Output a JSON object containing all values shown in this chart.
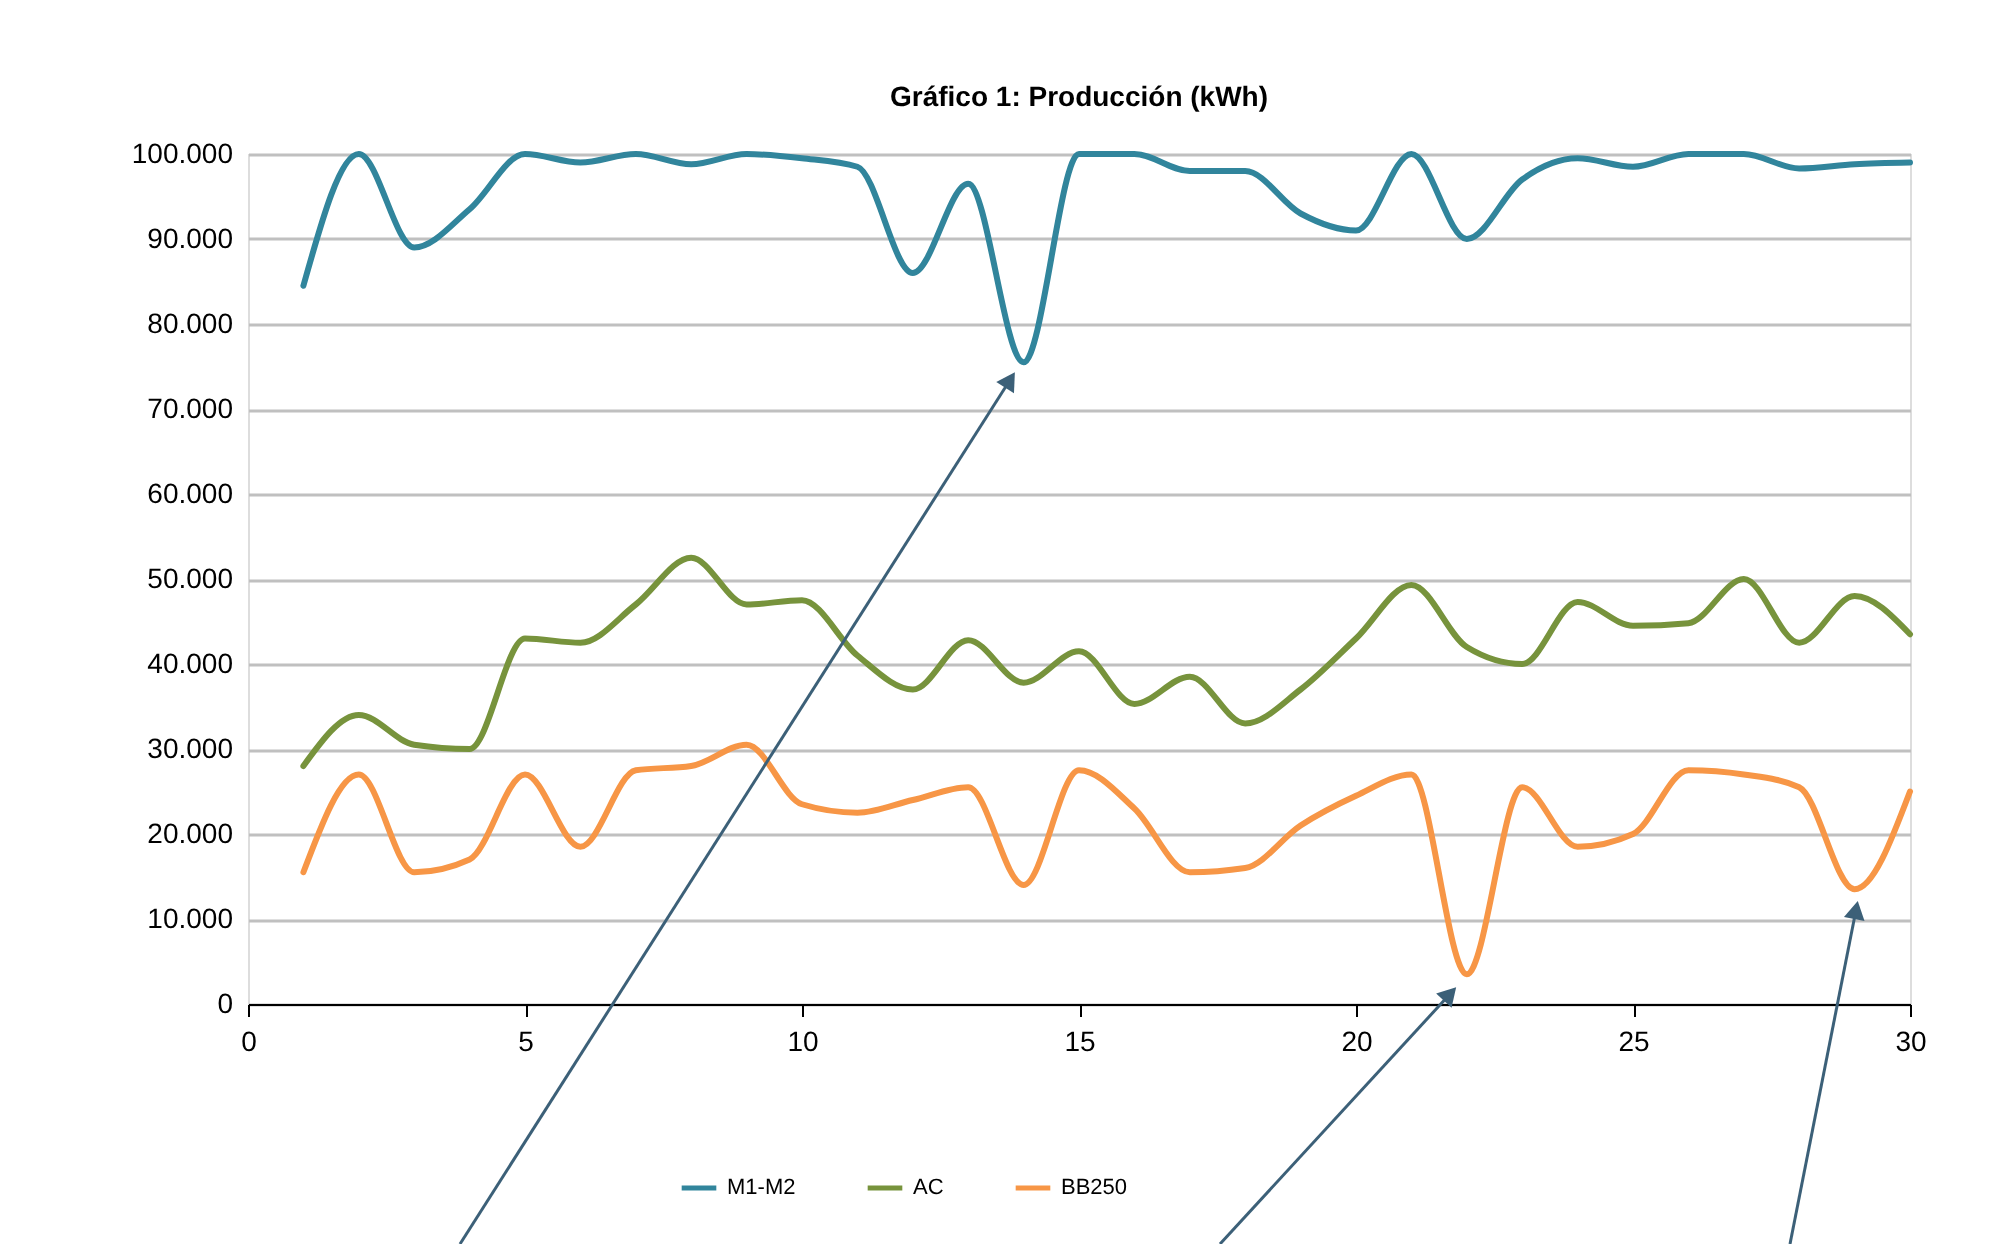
{
  "chart_data": {
    "type": "line",
    "title": "Gráfico 1:  Producción (kWh)",
    "x": [
      1,
      2,
      3,
      4,
      5,
      6,
      7,
      8,
      9,
      10,
      11,
      12,
      13,
      14,
      15,
      16,
      17,
      18,
      19,
      20,
      21,
      22,
      23,
      24,
      25,
      26,
      27,
      28,
      29,
      30
    ],
    "series": [
      {
        "name": "M1-M2",
        "color": "#31859c",
        "values": [
          84500,
          100000,
          89000,
          93500,
          100000,
          99000,
          100000,
          98800,
          100000,
          99500,
          98500,
          86000,
          96500,
          75500,
          100000,
          100000,
          98000,
          98000,
          93000,
          91000,
          100000,
          90000,
          97000,
          99500,
          98500,
          100000,
          100000,
          98300,
          98800,
          99000
        ]
      },
      {
        "name": "AC",
        "color": "#77933c",
        "values": [
          28000,
          34000,
          30500,
          30000,
          43000,
          42500,
          47000,
          52500,
          47000,
          47500,
          41000,
          37000,
          42800,
          37800,
          41500,
          35300,
          38500,
          33000,
          37000,
          43000,
          49300,
          42000,
          40000,
          47300,
          44500,
          44800,
          50000,
          42500,
          48000,
          43500
        ]
      },
      {
        "name": "BB250",
        "color": "#f79646",
        "values": [
          15500,
          27000,
          15500,
          17000,
          27000,
          18500,
          27500,
          28000,
          30500,
          23500,
          22500,
          24000,
          25500,
          14000,
          27500,
          23000,
          15500,
          16000,
          21000,
          24500,
          27000,
          3500,
          25500,
          18500,
          20000,
          27500,
          27000,
          25500,
          13500,
          25000
        ]
      }
    ],
    "xlim": [
      0,
      30
    ],
    "xticks": [
      0,
      5,
      10,
      15,
      20,
      25,
      30
    ],
    "ylim": [
      0,
      100000
    ],
    "yticks": [
      {
        "value": 0,
        "label": "0"
      },
      {
        "value": 10000,
        "label": "10.000"
      },
      {
        "value": 20000,
        "label": "20.000"
      },
      {
        "value": 30000,
        "label": "30.000"
      },
      {
        "value": 40000,
        "label": "40.000"
      },
      {
        "value": 50000,
        "label": "50.000"
      },
      {
        "value": 60000,
        "label": "60.000"
      },
      {
        "value": 70000,
        "label": "70.000"
      },
      {
        "value": 80000,
        "label": "80.000"
      },
      {
        "value": 90000,
        "label": "90.000"
      },
      {
        "value": 100000,
        "label": "100.000"
      }
    ],
    "grid": "y",
    "legend": "bottom",
    "marker": "none",
    "line_style": "solid"
  }
}
